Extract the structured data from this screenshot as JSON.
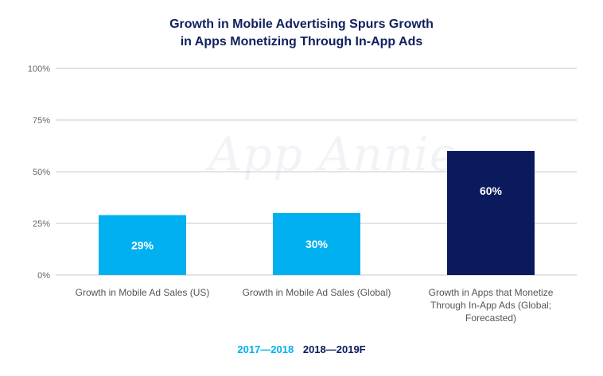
{
  "chart_data": {
    "type": "bar",
    "title_lines": [
      "Growth in Mobile Advertising Spurs Growth",
      "in Apps Monetizing Through In-App Ads"
    ],
    "categories": [
      [
        "Growth in Mobile Ad Sales (US)"
      ],
      [
        "Growth in Mobile Ad Sales (Global)"
      ],
      [
        "Growth in Apps that Monetize",
        "Through In-App Ads (Global;",
        "Forecasted)"
      ]
    ],
    "values": [
      29,
      30,
      60
    ],
    "value_labels": [
      "29%",
      "30%",
      "60%"
    ],
    "bar_series": [
      "2017—2018",
      "2017—2018",
      "2018—2019F"
    ],
    "series": [
      {
        "name": "2017—2018",
        "color": "#00b0f0"
      },
      {
        "name": "2018—2019F",
        "color": "#0a1a5c"
      }
    ],
    "ylim": [
      0,
      100
    ],
    "yticks": [
      0,
      25,
      50,
      75,
      100
    ],
    "ytick_labels": [
      "0%",
      "25%",
      "50%",
      "75%",
      "100%"
    ],
    "grid": true,
    "legend_position": "bottom-center",
    "watermark": "App Annie"
  }
}
